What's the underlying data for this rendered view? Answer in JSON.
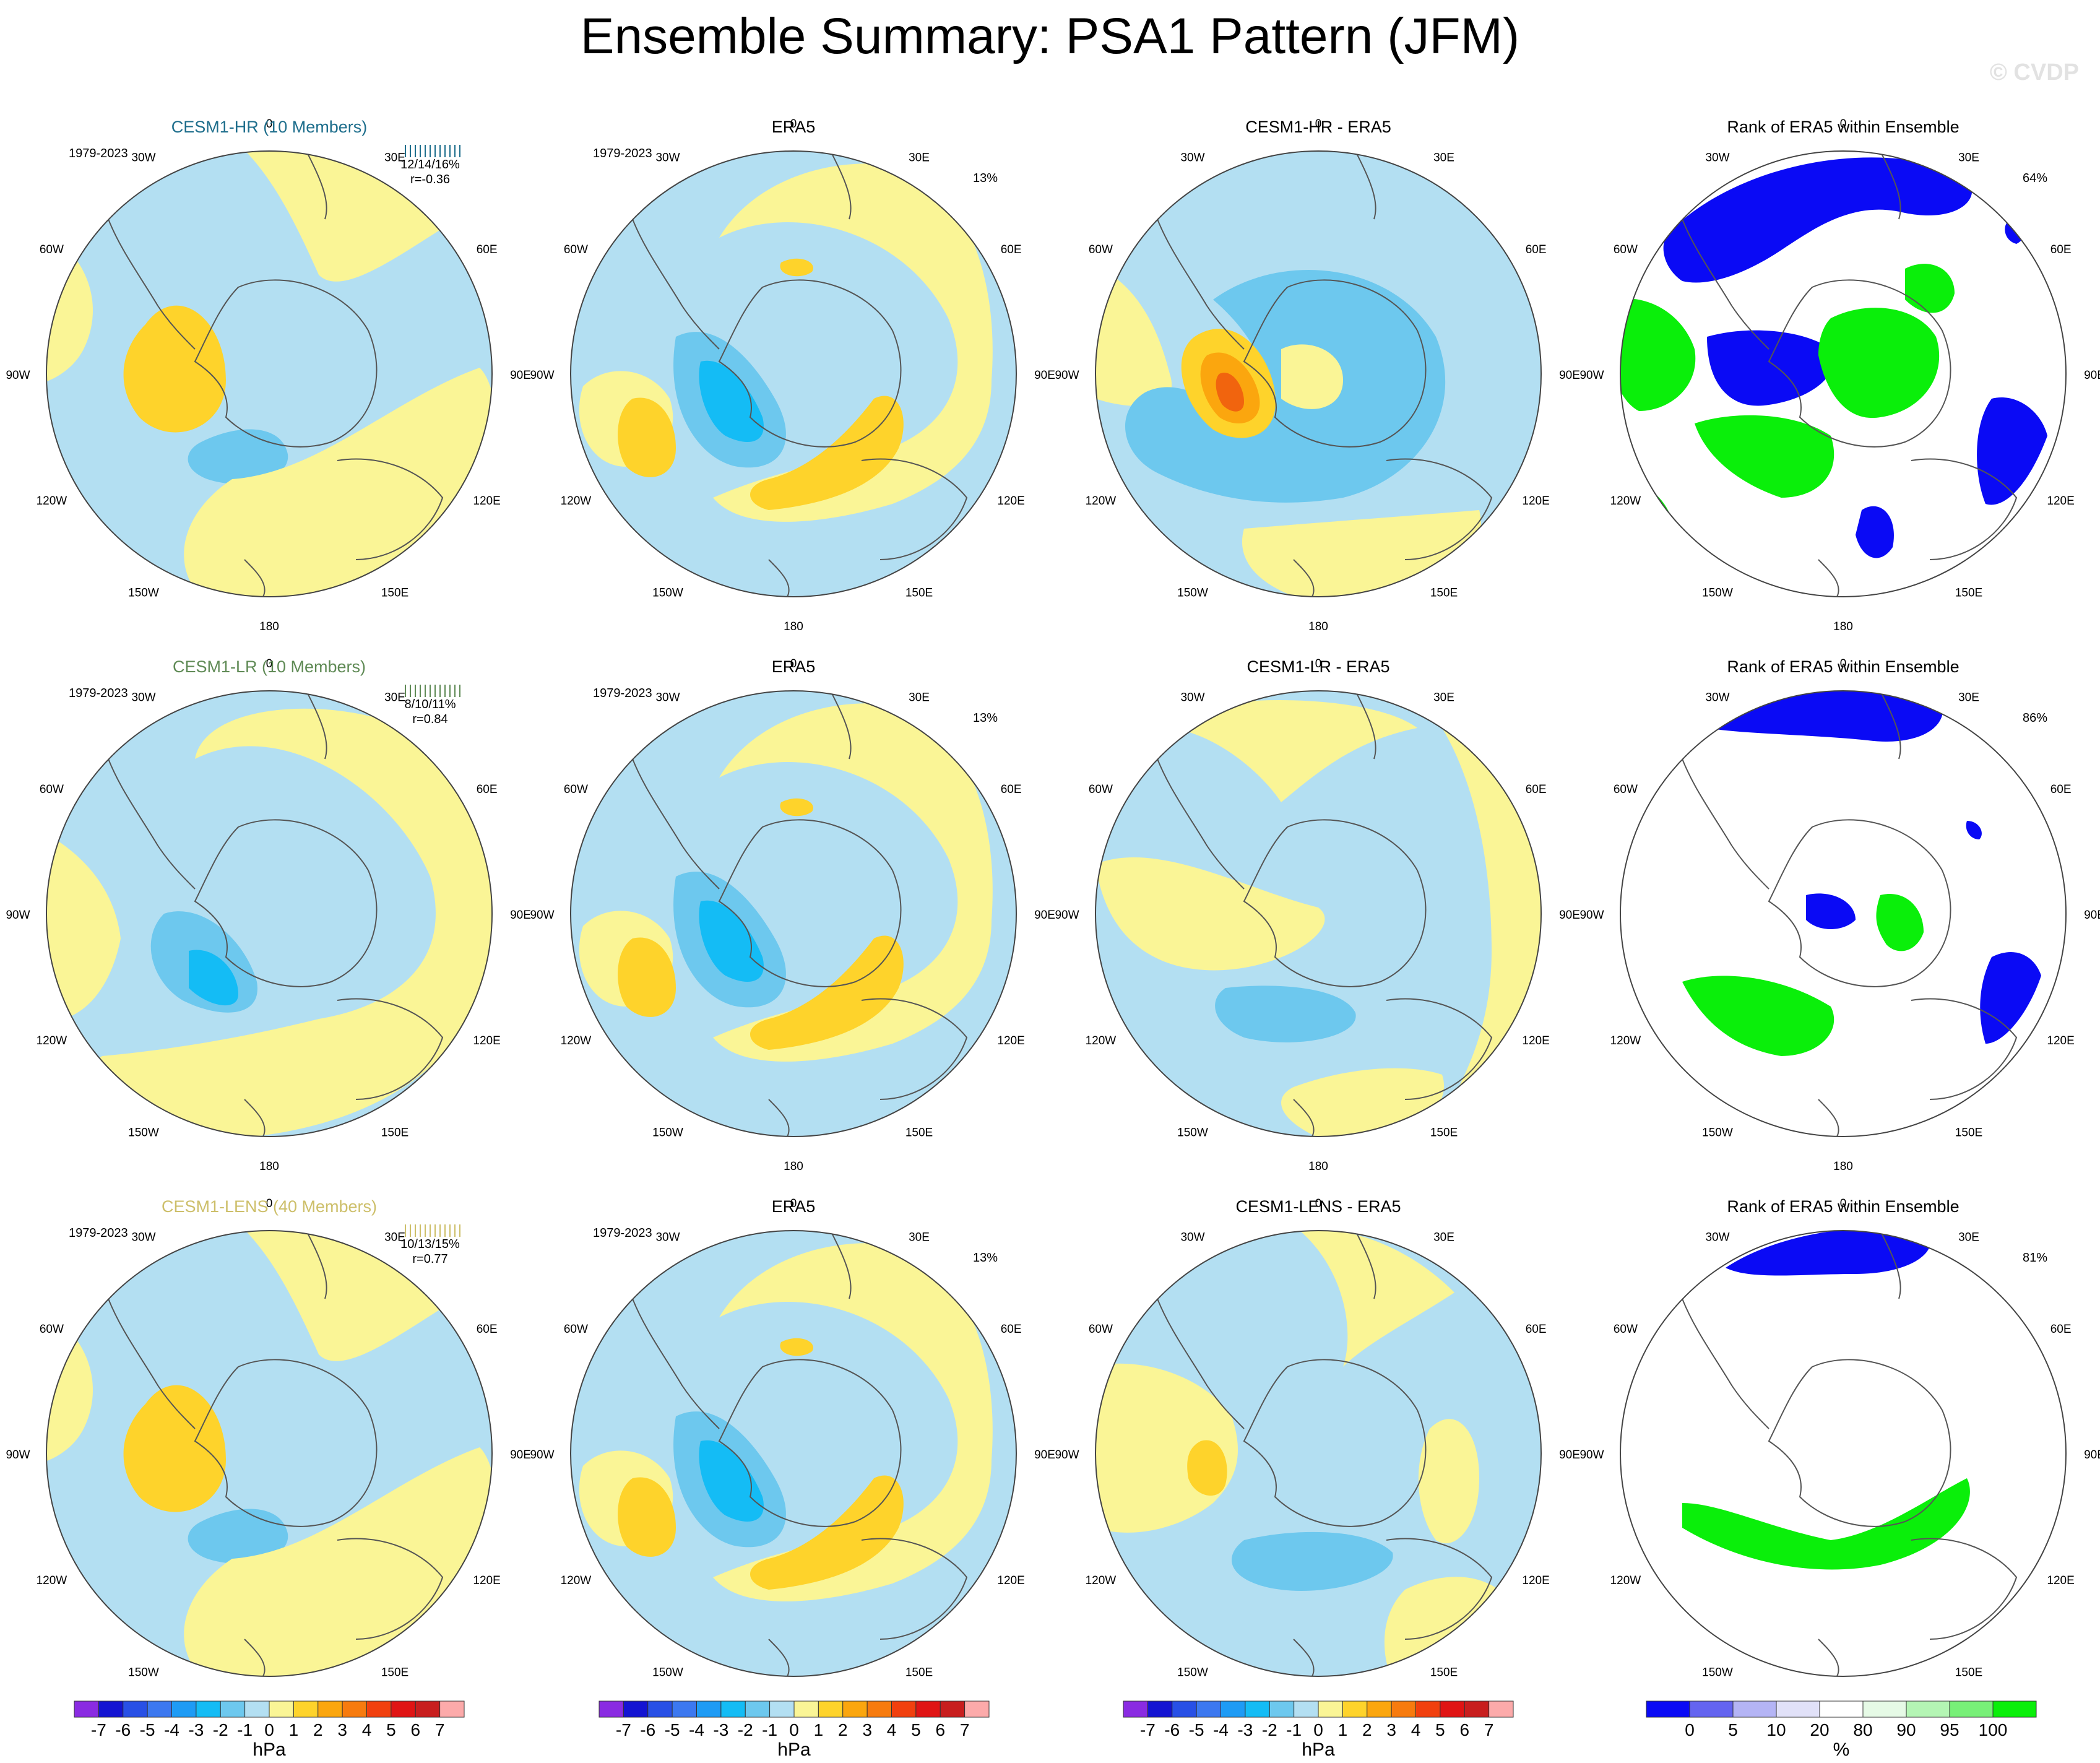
{
  "title": "Ensemble Summary: PSA1 Pattern (JFM)",
  "watermark": "© CVDP",
  "colors": {
    "ocean_blue": "#b3dff2",
    "land_yellow": "#faf596",
    "pos1": "#fed32b",
    "pos2": "#fba60e",
    "pos3": "#f1640e",
    "neg1": "#6dc8ee",
    "neg2": "#14bcf5",
    "rank_white": "#ffffff",
    "rank_blue": "#0a0af5",
    "rank_green": "#0aef0a"
  },
  "chart_data": {
    "type": "polar-stereographic-maps",
    "rows": [
      {
        "model": {
          "title": "CESM1-HR (10 Members)",
          "title_color": "#1e6e8c",
          "period": "1979-2023",
          "stats": "12/14/16%",
          "r": "r=-0.36"
        },
        "obs": {
          "title": "ERA5",
          "period": "1979-2023",
          "pct": "13%"
        },
        "diff": {
          "title": "CESM1-HR - ERA5"
        },
        "rank": {
          "title": "Rank of ERA5 within Ensemble",
          "pct": "64%"
        }
      },
      {
        "model": {
          "title": "CESM1-LR (10 Members)",
          "title_color": "#5f8a55",
          "period": "1979-2023",
          "stats": "8/10/11%",
          "r": "r=0.84"
        },
        "obs": {
          "title": "ERA5",
          "period": "1979-2023",
          "pct": "13%"
        },
        "diff": {
          "title": "CESM1-LR - ERA5"
        },
        "rank": {
          "title": "Rank of ERA5 within Ensemble",
          "pct": "86%"
        }
      },
      {
        "model": {
          "title": "CESM1-LENS (40 Members)",
          "title_color": "#cdbf6a",
          "period": "1979-2023",
          "stats": "10/13/15%",
          "r": "r=0.77"
        },
        "obs": {
          "title": "ERA5",
          "period": "1979-2023",
          "pct": "13%"
        },
        "diff": {
          "title": "CESM1-LENS - ERA5"
        },
        "rank": {
          "title": "Rank of ERA5 within Ensemble",
          "pct": "81%"
        }
      }
    ],
    "longitude_labels": [
      "0",
      "30E",
      "60E",
      "90E",
      "120E",
      "150E",
      "180",
      "150W",
      "120W",
      "90W",
      "60W",
      "30W"
    ],
    "colorbar_hpa": {
      "label": "hPa",
      "ticks": [
        "-7",
        "-6",
        "-5",
        "-4",
        "-3",
        "-2",
        "-1",
        "0",
        "1",
        "2",
        "3",
        "4",
        "5",
        "6",
        "7"
      ],
      "colors": [
        "#8a2be2",
        "#1414d2",
        "#2850e6",
        "#3c78f0",
        "#1e9bf5",
        "#14bcf5",
        "#6dc8ee",
        "#b3dff2",
        "#faf596",
        "#fed32b",
        "#fba60e",
        "#f77b0e",
        "#f1400e",
        "#e01414",
        "#c81e1e",
        "#fcaaaa"
      ]
    },
    "colorbar_rank": {
      "label": "%",
      "ticks": [
        "0",
        "5",
        "10",
        "20",
        "80",
        "90",
        "95",
        "100"
      ],
      "colors": [
        "#0a0af5",
        "#6464f0",
        "#b4b4f5",
        "#e1e1f8",
        "#ffffff",
        "#e6fae6",
        "#b4f5b4",
        "#78f078",
        "#0aef0a"
      ]
    }
  }
}
